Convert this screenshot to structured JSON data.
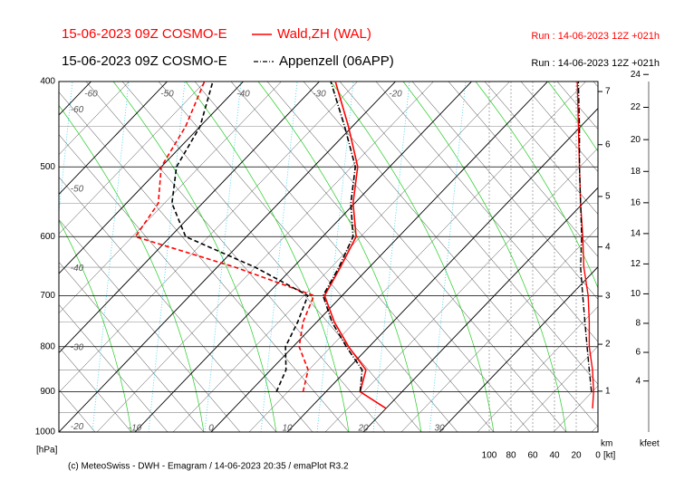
{
  "chart_data": {
    "type": "emagram",
    "log_scale": true,
    "pressure": [
      940,
      900,
      850,
      800,
      750,
      700,
      650,
      600,
      550,
      500,
      450,
      400
    ],
    "ylim": [
      1000,
      400
    ],
    "yticks": [
      400,
      500,
      600,
      700,
      800,
      900,
      1000
    ],
    "minor_yticks": [
      450,
      550,
      650,
      750,
      850,
      950
    ],
    "y_label": "[hPa]",
    "xticks": [
      -60,
      -50,
      -40,
      -30,
      -20,
      -10,
      0,
      10,
      20,
      30
    ],
    "wind_xlim": [
      100,
      0
    ],
    "wind_ticks": [
      100,
      80,
      60,
      40,
      20,
      0
    ],
    "wind_label": "[kt]",
    "km_ticks": [
      1,
      2,
      3,
      4,
      5,
      6,
      7
    ],
    "km_label": "km",
    "kfeet_ticks": [
      4,
      6,
      8,
      10,
      12,
      14,
      16,
      18,
      20,
      22,
      24
    ],
    "kfeet_label": "kfeet",
    "footer": "(c) MeteoSwiss - DWH - Emagram / 14-06-2023  20:35 / emaPlot R3.2",
    "series": [
      {
        "name": "Wald,ZH (WAL)",
        "model": "15-06-2023 09Z COSMO-E",
        "run": "Run : 14-06-2023 12Z +021h",
        "color": "#ff0000",
        "dash": "solid",
        "temperature": [
          20,
          14.5,
          12.5,
          7.3,
          2.3,
          -2.3,
          -3.8,
          -5.6,
          -10.2,
          -14.2,
          -20.5,
          -27.9
        ],
        "dewpoint": [
          null,
          7.0,
          4.9,
          0.8,
          -1.8,
          -3.7,
          -17.6,
          -34.6,
          -35.8,
          -40,
          -41.9,
          -45.1
        ],
        "wind_speed": [
          5,
          4,
          5,
          8,
          8,
          9,
          13,
          14,
          16,
          17,
          18,
          19
        ]
      },
      {
        "name": "Appenzell (06APP)",
        "model": "15-06-2023 09Z COSMO-E",
        "run": "Run : 14-06-2023 12Z +021h",
        "color": "#000000",
        "dash": "dashdot",
        "temperature": [
          null,
          14.5,
          12.0,
          7.0,
          2.0,
          -2.5,
          -4.0,
          -6.0,
          -10.5,
          -14.5,
          -21,
          -28.5
        ],
        "dewpoint": [
          null,
          3.5,
          2.0,
          -1.0,
          -2.5,
          -4.5,
          -15,
          -28,
          -34,
          -38,
          -40,
          -44
        ],
        "wind_speed": [
          null,
          6,
          8,
          10,
          12,
          14,
          16,
          15,
          16,
          17,
          17,
          18
        ]
      }
    ]
  }
}
